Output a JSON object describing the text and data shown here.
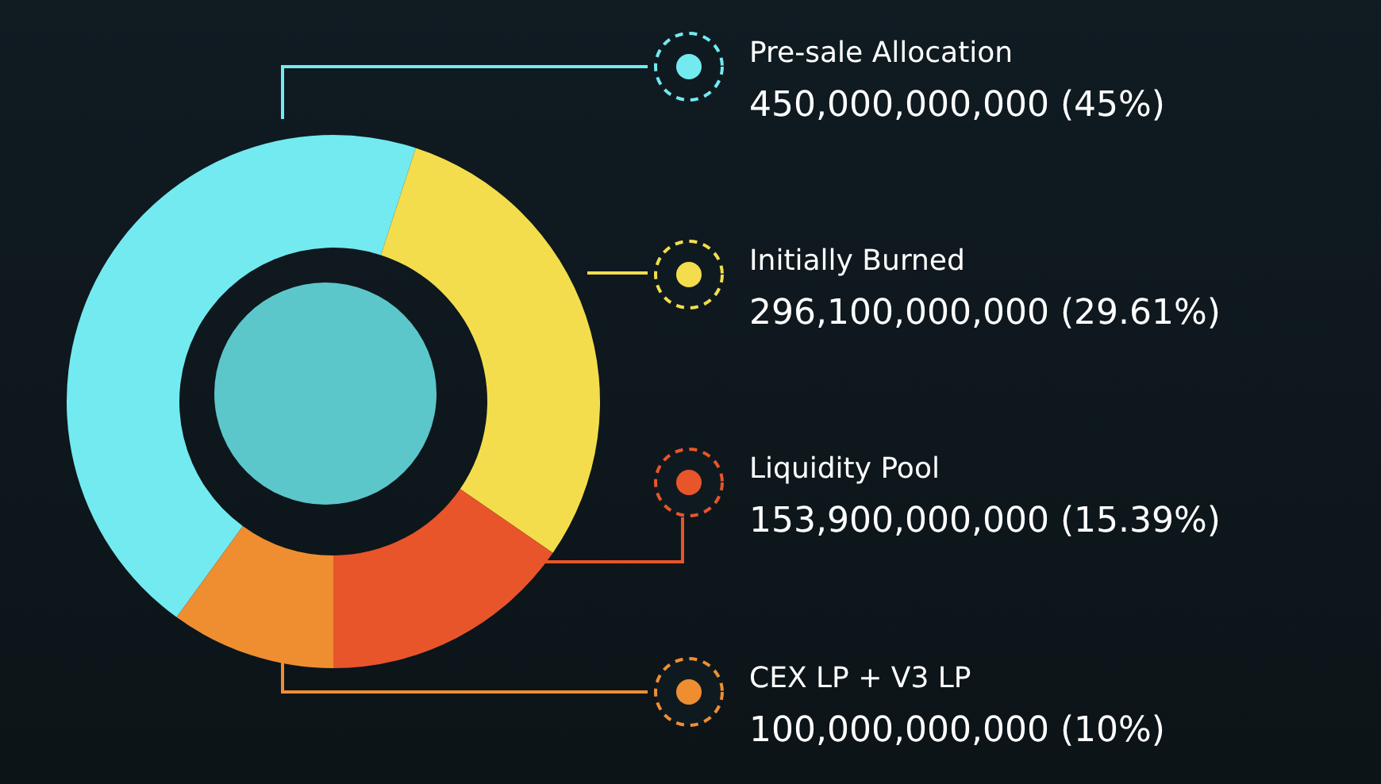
{
  "chart_data": {
    "type": "donut",
    "categories": [
      "Pre-sale Allocation",
      "Initially Burned",
      "Liquidity Pool",
      "CEX LP + V3 LP"
    ],
    "values": [
      450000000000,
      296100000000,
      153900000000,
      100000000000
    ],
    "colors": [
      "#72eaf0",
      "#f3dd4c",
      "#e8552a",
      "#ef8e31"
    ],
    "value_labels": [
      "450,000,000,000 (45%)",
      "296,100,000,000 (29.61%)",
      "153,900,000,000 (15.39%)",
      "100,000,000,000 (10%)"
    ],
    "legend": "right"
  }
}
